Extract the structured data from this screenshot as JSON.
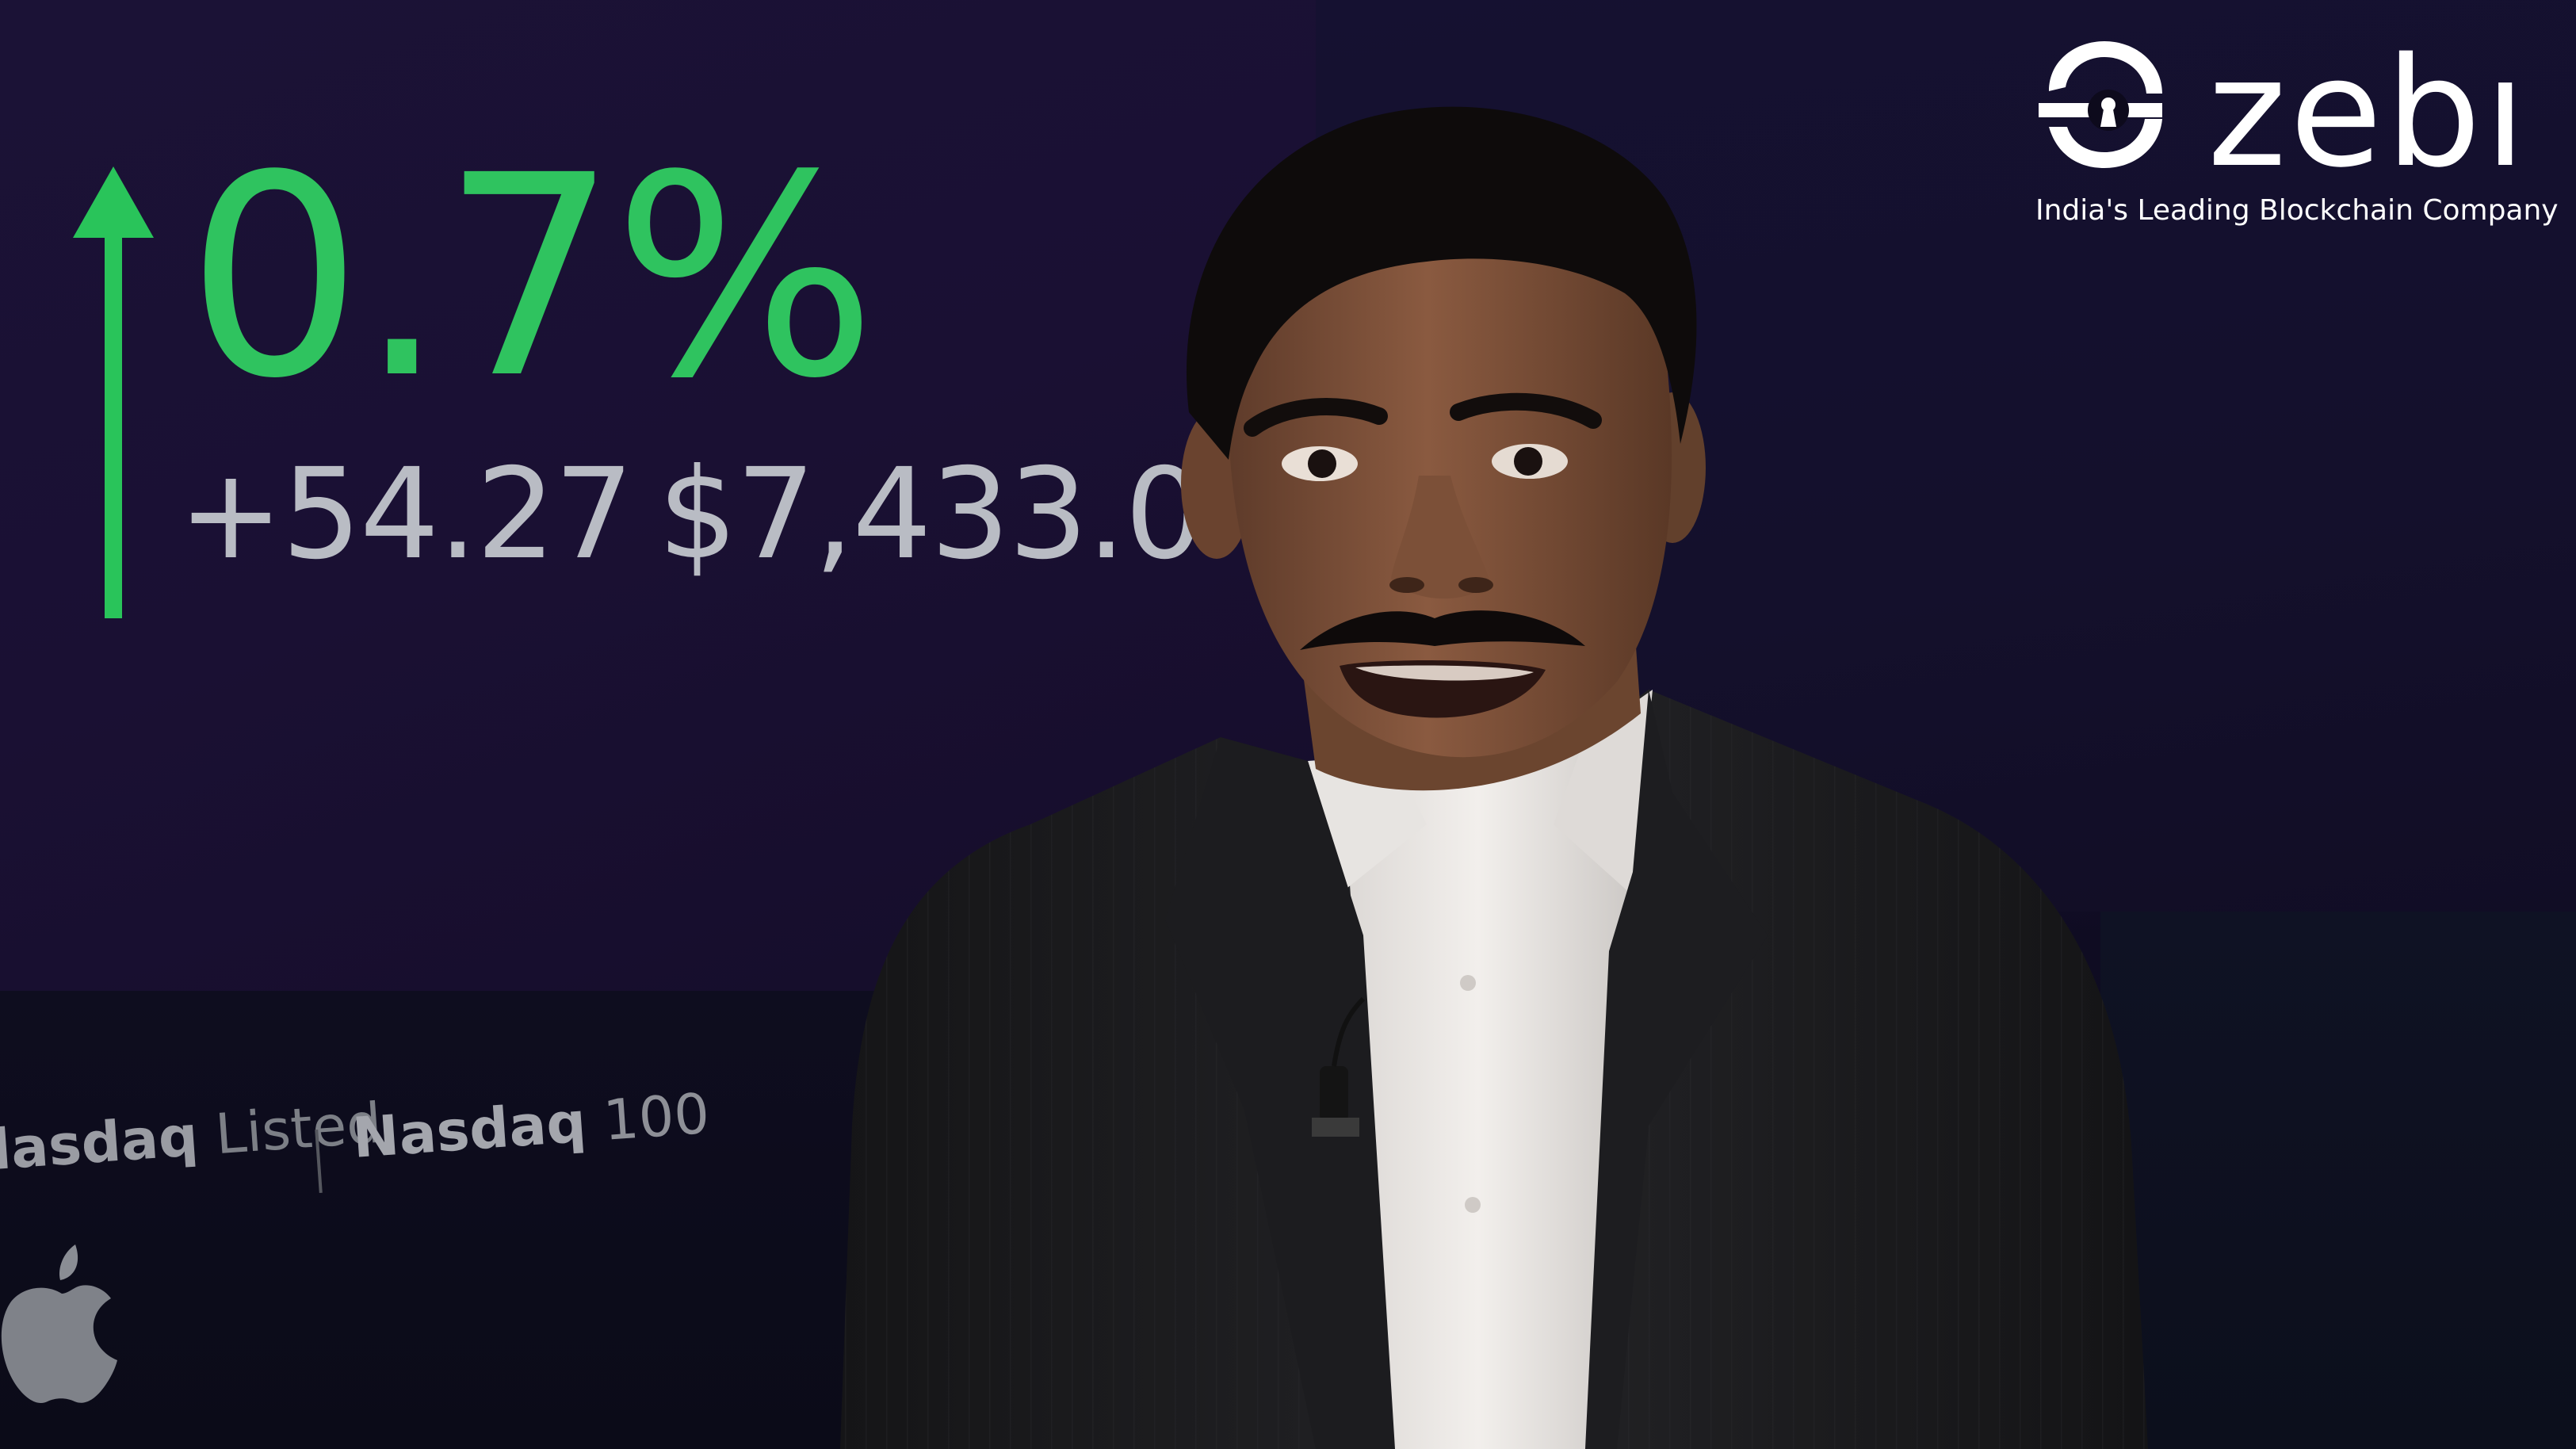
{
  "ticker": {
    "percent_change": "0.7%",
    "point_change": "+54.27",
    "price": "$7,433.04"
  },
  "screen_labels": {
    "nasdaq_listed_bold": "lasdaq",
    "nasdaq_listed_rest": "Listed",
    "nasdaq_100_bold": "Nasdaq",
    "nasdaq_100_rest": "100"
  },
  "brand": {
    "name": "zebı",
    "tagline": "India's Leading Blockchain Company"
  },
  "colors": {
    "ticker_green": "#2fc35f",
    "ticker_gray": "#b9bcc4",
    "suit": "#1a1a1d",
    "shirt": "#ece9e6",
    "skin": "#7a4f38",
    "hair": "#0c0a0a"
  },
  "icons": {
    "ticker_arrow": "arrow-up-icon",
    "apple": "apple-logo-icon",
    "brand_logo": "zebi-logo-icon"
  }
}
